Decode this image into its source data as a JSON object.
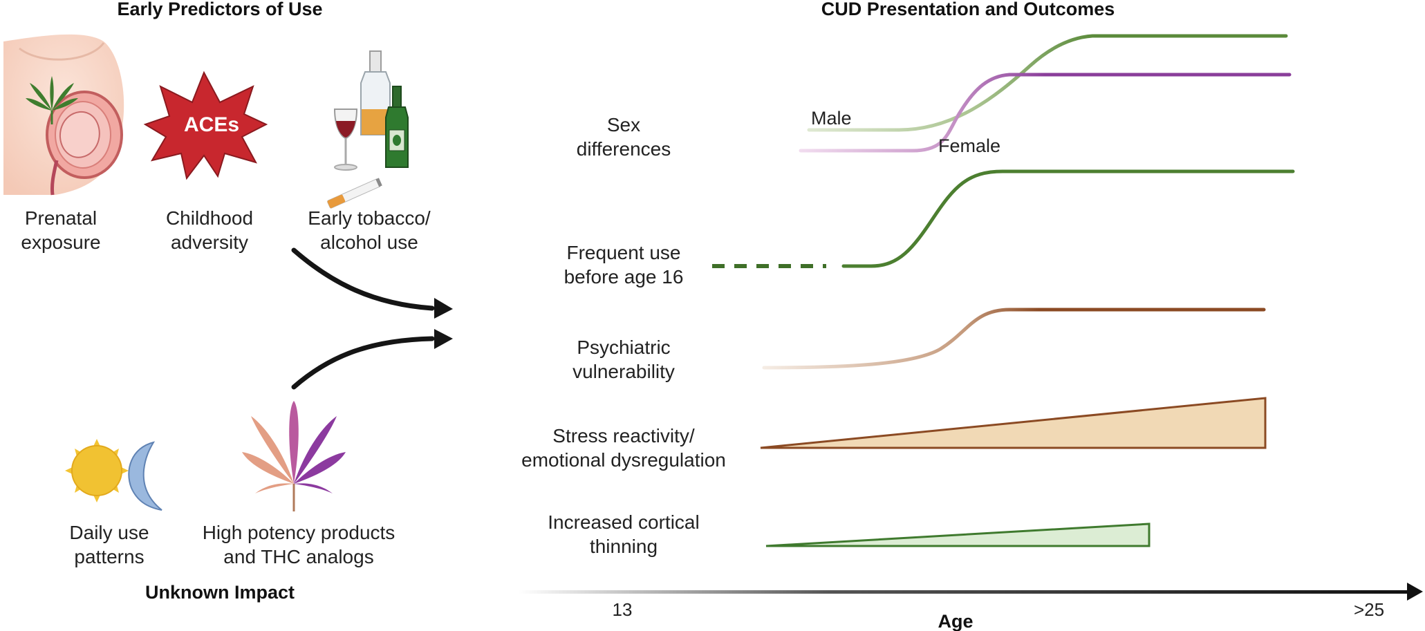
{
  "left_panel": {
    "title": "Early Predictors of Use",
    "predictors": [
      {
        "icon": "pregnant-fetus-cannabis-icon",
        "line1": "Prenatal",
        "line2": "exposure"
      },
      {
        "icon": "aces-burst-icon",
        "badge": "ACEs",
        "line1": "Childhood",
        "line2": "adversity"
      },
      {
        "icon": "alcohol-tobacco-icon",
        "line1": "Early tobacco/",
        "line2": "alcohol use"
      }
    ],
    "unknown_impact": {
      "title": "Unknown Impact",
      "items": [
        {
          "icon": "sun-moon-icon",
          "line1": "Daily use",
          "line2": "patterns"
        },
        {
          "icon": "cannabis-leaf-icon",
          "line1": "High potency products",
          "line2": "and THC analogs"
        }
      ]
    }
  },
  "right_panel": {
    "title": "CUD Presentation and Outcomes",
    "rows": [
      {
        "line1": "Sex",
        "line2": "differences",
        "series": [
          {
            "name": "Male",
            "color": "#5a8a3a"
          },
          {
            "name": "Female",
            "color": "#8a3e9a"
          }
        ]
      },
      {
        "line1": "Frequent use",
        "line2": "before age 16",
        "color": "#4c7f30"
      },
      {
        "line1": "Psychiatric",
        "line2": "vulnerability",
        "color": "#8b4a23"
      },
      {
        "line1": "Stress reactivity/",
        "line2": "emotional dysregulation",
        "color": "#8b4a23",
        "fill": "#f1d9b5"
      },
      {
        "line1": "Increased cortical",
        "line2": "thinning",
        "color": "#3f7a2e",
        "fill": "#dcedd4"
      }
    ],
    "axis": {
      "label": "Age",
      "start_tick": "13",
      "end_tick": ">25"
    }
  }
}
